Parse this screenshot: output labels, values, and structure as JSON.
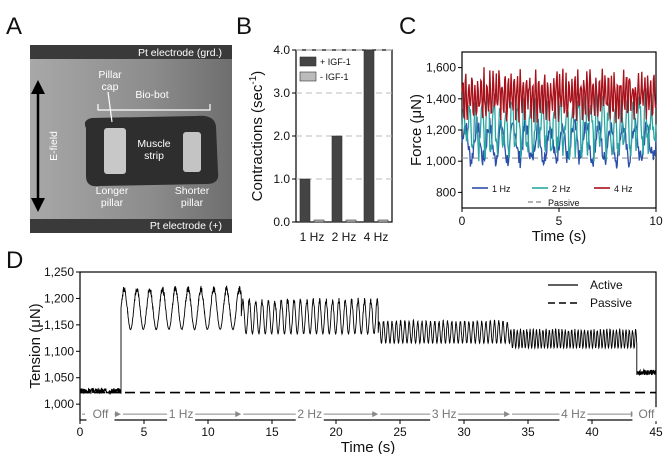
{
  "panels": {
    "A": {
      "letter": "A",
      "labels": {
        "electrode_top": "Pt electrode (grd.)",
        "electrode_bottom": "Pt electrode (+)",
        "efield": "E-field",
        "pillar_cap": [
          "Pillar",
          "cap"
        ],
        "biobot": "Bio-bot",
        "muscle": [
          "Muscle",
          "strip"
        ],
        "longer": [
          "Longer",
          "pillar"
        ],
        "shorter": [
          "Shorter",
          "pillar"
        ]
      },
      "colors": {
        "background": "#8a8a8a",
        "bot": "#2e2e2e",
        "pillar": "#c8c8c8"
      }
    },
    "B": {
      "letter": "B"
    },
    "C": {
      "letter": "C"
    },
    "D": {
      "letter": "D"
    }
  },
  "chart_data": [
    {
      "panel": "B",
      "type": "bar",
      "ylabel": "Contractions (sec⁻¹)",
      "ylabel_main": "Contractions (sec",
      "ylabel_sup": "-1",
      "ylabel_close": ")",
      "categories": [
        "1 Hz",
        "2 Hz",
        "4 Hz"
      ],
      "series": [
        {
          "name": "+ IGF-1",
          "values": [
            1.0,
            2.0,
            4.0
          ],
          "color": "#444444"
        },
        {
          "name": "- IGF-1",
          "values": [
            0.0,
            0.0,
            0.0
          ],
          "color": "#bbbbbb"
        }
      ],
      "ylim": [
        0,
        4.0
      ],
      "yticks": [
        "0.0",
        "1.0",
        "2.0",
        "3.0",
        "4.0"
      ],
      "grid": "dashed horizontal",
      "legend": "top-left"
    },
    {
      "panel": "C",
      "type": "line",
      "xlabel": "Time (s)",
      "ylabel": "Force (μN)",
      "xlim": [
        0,
        10
      ],
      "ylim": [
        700,
        1700
      ],
      "xticks": [
        "0",
        "5",
        "10"
      ],
      "yticks": [
        "800",
        "1,000",
        "1,200",
        "1,400",
        "1,600"
      ],
      "series": [
        {
          "name": "1 Hz",
          "color": "#2b4fa8",
          "mean": 1120,
          "amp": 110,
          "freq": 1
        },
        {
          "name": "2 Hz",
          "color": "#2aa6a2",
          "mean": 1230,
          "amp": 150,
          "freq": 2
        },
        {
          "name": "4 Hz",
          "color": "#a8101a",
          "mean": 1420,
          "amp": 120,
          "freq": 4
        },
        {
          "name": "Passive",
          "color": "#999999",
          "value": 1020,
          "dashed": true
        }
      ],
      "legend": "bottom"
    },
    {
      "panel": "D",
      "type": "line",
      "xlabel": "Time (s)",
      "ylabel": "Tension (μN)",
      "xlim": [
        0,
        45
      ],
      "ylim": [
        970,
        1250
      ],
      "xticks": [
        "0",
        "5",
        "10",
        "15",
        "20",
        "25",
        "30",
        "35",
        "40",
        "45"
      ],
      "yticks": [
        "1,000",
        "1,050",
        "1,100",
        "1,150",
        "1,200",
        "1,250"
      ],
      "series": [
        {
          "name": "Active",
          "color": "#000000"
        },
        {
          "name": "Passive",
          "color": "#000000",
          "dashed": true,
          "value": 1022
        }
      ],
      "segments": [
        {
          "label": "Off",
          "start": 0,
          "end": 3.2,
          "freq": 0,
          "mean": 1025,
          "amp": 5
        },
        {
          "label": "1 Hz",
          "start": 3.2,
          "end": 12.6,
          "freq": 1,
          "mean": 1150,
          "amp": 85
        },
        {
          "label": "2 Hz",
          "start": 12.6,
          "end": 23.3,
          "freq": 2,
          "mean": 1140,
          "amp": 70
        },
        {
          "label": "3 Hz",
          "start": 23.3,
          "end": 33.6,
          "freq": 3,
          "mean": 1120,
          "amp": 45
        },
        {
          "label": "4 Hz",
          "start": 33.6,
          "end": 43.5,
          "freq": 4,
          "mean": 1110,
          "amp": 38
        },
        {
          "label": "Off",
          "start": 43.5,
          "end": 45,
          "freq": 0,
          "mean": 1060,
          "amp": 5
        }
      ],
      "legend": "top-right"
    }
  ]
}
